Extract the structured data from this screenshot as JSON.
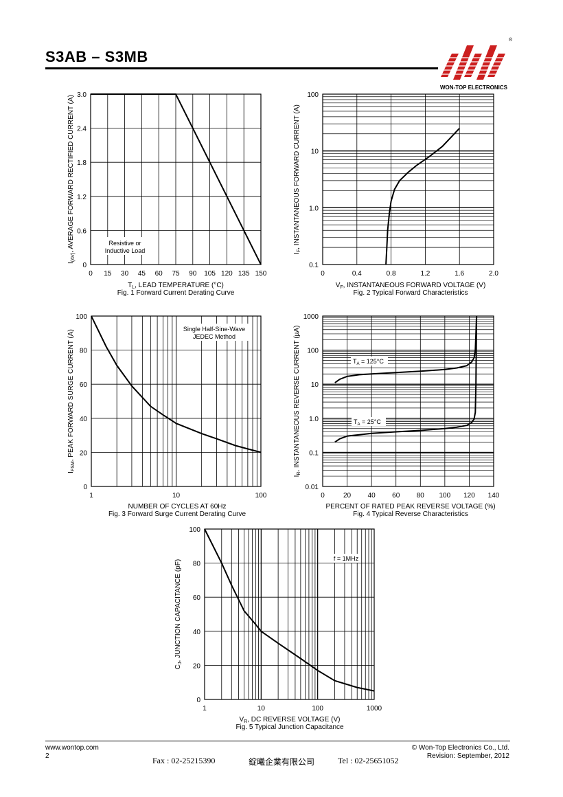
{
  "header": {
    "title": "S3AB – S3MB",
    "brand_caption": "WON-TOP ELECTRONICS",
    "registered": "®"
  },
  "colors": {
    "logo_red": "#cc1f1f",
    "ink": "#000000"
  },
  "charts": {
    "fig1": {
      "ylabel_prefix": "I",
      "ylabel_sub": "(AV)",
      "ylabel_rest": ", AVERAGE FORWARD RECTIFIED CURRENT (A)",
      "xlabel_prefix": "T",
      "xlabel_sub": "L",
      "xlabel_rest": ", LEAD TEMPERATURE (°C)",
      "caption": "Fig. 1 Forward Current Derating Curve",
      "note_line1": "Resistive or",
      "note_line2": "Inductive Load"
    },
    "fig2": {
      "ylabel_prefix": "I",
      "ylabel_sub": "F",
      "ylabel_rest": ", INSTANTANEOUS FORWARD CURRENT (A)",
      "xlabel_prefix": "V",
      "xlabel_sub": "F",
      "xlabel_rest": ", INSTANTANEOUS FORWARD VOLTAGE (V)",
      "caption": "Fig. 2 Typical Forward Characteristics"
    },
    "fig3": {
      "ylabel_prefix": "I",
      "ylabel_sub": "FSM",
      "ylabel_rest": ", PEAK FORWARD SURGE CURRENT (A)",
      "xlabel": "NUMBER OF CYCLES AT 60Hz",
      "caption": "Fig. 3 Forward Surge Current Derating Curve",
      "note_line1": "Single Half-Sine-Wave",
      "note_line2": "JEDEC Method"
    },
    "fig4": {
      "ylabel_prefix": "I",
      "ylabel_sub": "R",
      "ylabel_rest": ", INSTANTANEOUS REVERSE CURRENT (µA)",
      "xlabel": "PERCENT OF RATED PEAK REVERSE VOLTAGE (%)",
      "caption": "Fig. 4 Typical Reverse Characteristics"
    },
    "fig5": {
      "ylabel_prefix": "C",
      "ylabel_sub": "J",
      "ylabel_rest": ", JUNCTION CAPACITANCE (pF)",
      "xlabel_prefix": "V",
      "xlabel_sub": "R",
      "xlabel_rest": ", DC REVERSE VOLTAGE (V)",
      "caption": "Fig. 5 Typical Junction Capacitance",
      "note_line1": "f = 1MHz"
    }
  },
  "chart_data": [
    {
      "type": "line",
      "title": "Fig. 1 Forward Current Derating Curve",
      "x_ticks": [
        "0",
        "15",
        "30",
        "45",
        "60",
        "75",
        "90",
        "105",
        "120",
        "135",
        "150"
      ],
      "y_ticks": [
        "0",
        "0.6",
        "1.2",
        "1.8",
        "2.4",
        "3.0"
      ],
      "xlim": [
        0,
        150
      ],
      "ylim": [
        0,
        3.0
      ],
      "grid": true,
      "series": [
        {
          "x": [
            0,
            75,
            150
          ],
          "y": [
            3.0,
            3.0,
            0
          ]
        }
      ]
    },
    {
      "type": "line",
      "title": "Fig. 2 Typical Forward Characteristics",
      "x_ticks": [
        "0",
        "0.4",
        "0.8",
        "1.2",
        "1.6",
        "2.0"
      ],
      "y_ticks": [
        "0.1",
        "1.0",
        "10",
        "100"
      ],
      "xlim": [
        0,
        2.0
      ],
      "ylim": [
        0.1,
        100
      ],
      "y_scale": "log",
      "grid": true,
      "series": [
        {
          "x": [
            0.74,
            0.75,
            0.76,
            0.78,
            0.8,
            0.84,
            0.9,
            1.0,
            1.1,
            1.25,
            1.4,
            1.6
          ],
          "y": [
            0.1,
            0.2,
            0.4,
            0.8,
            1.3,
            2.1,
            3.0,
            4.2,
            5.6,
            8.0,
            12,
            25
          ]
        }
      ]
    },
    {
      "type": "line",
      "title": "Fig. 3 Forward Surge Current Derating Curve",
      "x_ticks": [
        "1",
        "10",
        "100"
      ],
      "y_ticks": [
        "0",
        "20",
        "40",
        "60",
        "80",
        "100"
      ],
      "xlim": [
        1,
        100
      ],
      "ylim": [
        0,
        100
      ],
      "x_scale": "log",
      "grid": true,
      "series": [
        {
          "x": [
            1,
            1.5,
            2,
            3,
            5,
            7,
            10,
            20,
            30,
            50,
            70,
            100
          ],
          "y": [
            100,
            82,
            71,
            59,
            47,
            42,
            37,
            31,
            28,
            24,
            22,
            20
          ]
        }
      ]
    },
    {
      "type": "line",
      "title": "Fig. 4 Typical Reverse Characteristics",
      "x_ticks": [
        "0",
        "20",
        "40",
        "60",
        "80",
        "100",
        "120",
        "140"
      ],
      "y_ticks": [
        "0.01",
        "0.1",
        "1.0",
        "10",
        "100",
        "1000"
      ],
      "xlim": [
        0,
        140
      ],
      "ylim": [
        0.01,
        1000
      ],
      "y_scale": "log",
      "grid": true,
      "series": [
        {
          "name": "TA = 125°C",
          "x": [
            10,
            14,
            20,
            30,
            40,
            60,
            80,
            100,
            110,
            118,
            122,
            124,
            125,
            125.5,
            126
          ],
          "y": [
            11,
            14,
            17,
            19,
            20,
            22,
            24,
            27,
            30,
            35,
            45,
            60,
            100,
            300,
            1000
          ]
        },
        {
          "name": "TA = 25°C",
          "x": [
            10,
            14,
            20,
            30,
            40,
            60,
            80,
            100,
            110,
            118,
            122,
            124,
            125,
            125.5,
            126
          ],
          "y": [
            0.2,
            0.25,
            0.3,
            0.33,
            0.36,
            0.4,
            0.44,
            0.5,
            0.55,
            0.62,
            0.75,
            0.95,
            1.5,
            10,
            1000
          ]
        }
      ]
    },
    {
      "type": "line",
      "title": "Fig. 5 Typical Junction Capacitance",
      "x_ticks": [
        "1",
        "10",
        "100",
        "1000"
      ],
      "y_ticks": [
        "0",
        "20",
        "40",
        "60",
        "80",
        "100"
      ],
      "xlim": [
        1,
        1000
      ],
      "ylim": [
        0,
        100
      ],
      "x_scale": "log",
      "grid": true,
      "series": [
        {
          "x": [
            1,
            2,
            3,
            5,
            8,
            10,
            20,
            50,
            100,
            200,
            500,
            1000
          ],
          "y": [
            100,
            80,
            67,
            52,
            44,
            40,
            33,
            24,
            17,
            11,
            7,
            5
          ]
        }
      ]
    }
  ],
  "series_labels": {
    "t125_prefix": "T",
    "t125_sub": "A",
    "t125_rest": " = 125°C",
    "t25_prefix": "T",
    "t25_sub": "A",
    "t25_rest": " = 25°C"
  },
  "footer": {
    "website": "www.wontop.com",
    "page_number": "2",
    "copyright": "© Won-Top Electronics Co., Ltd.",
    "revision": "Revision: September, 2012",
    "fax": "Fax : 02-25215390",
    "company_cn": "錠曦企業有限公司",
    "tel": "Tel : 02-25651052"
  }
}
